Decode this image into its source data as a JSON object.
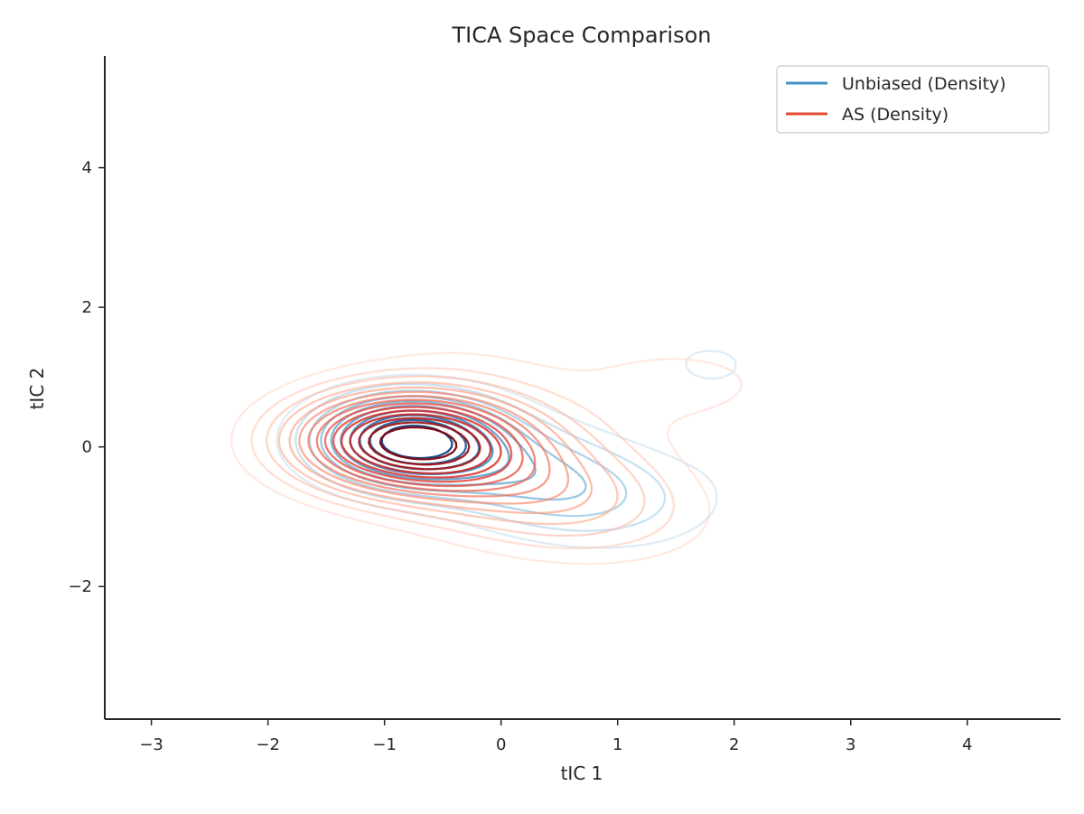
{
  "chart_data": {
    "type": "contour",
    "title": "TICA Space Comparison",
    "xlabel": "tIC 1",
    "ylabel": "tIC 2",
    "xlim": [
      -3.4,
      4.8
    ],
    "ylim": [
      -3.9,
      5.6
    ],
    "xticks": [
      -3,
      -2,
      -1,
      0,
      1,
      2,
      3,
      4
    ],
    "xtick_labels": [
      "−3",
      "−2",
      "−1",
      "0",
      "1",
      "2",
      "3",
      "4"
    ],
    "yticks": [
      -2,
      0,
      2,
      4
    ],
    "ytick_labels": [
      "−2",
      "0",
      "2",
      "4"
    ],
    "grid": false,
    "legend_position": "top-right",
    "series": [
      {
        "name": "Unbiased (Density)",
        "legend_color": "#4292c6",
        "colormap": "Blues",
        "levels": 10,
        "components": [
          {
            "mx": -0.8,
            "my": 0.1,
            "sx": 0.55,
            "sy": 0.45,
            "rho": 0.0,
            "w": 1.0
          },
          {
            "mx": 0.4,
            "my": -0.5,
            "sx": 0.8,
            "sy": 0.6,
            "rho": -0.35,
            "w": 0.45
          },
          {
            "mx": 0.6,
            "my": 2.7,
            "sx": 0.5,
            "sy": 0.7,
            "rho": 0.0,
            "w": 0.12
          },
          {
            "mx": 1.8,
            "my": 1.2,
            "sx": 0.45,
            "sy": 0.4,
            "rho": 0.0,
            "w": 0.14
          },
          {
            "mx": 2.0,
            "my": -0.3,
            "sx": 0.5,
            "sy": 0.7,
            "rho": 0.0,
            "w": 0.06
          }
        ]
      },
      {
        "name": "AS (Density)",
        "legend_color": "#e34a33",
        "colormap": "Reds",
        "levels": 15,
        "components": [
          {
            "mx": -0.8,
            "my": 0.1,
            "sx": 0.7,
            "sy": 0.5,
            "rho": 0.0,
            "w": 1.0
          },
          {
            "mx": 0.3,
            "my": -0.6,
            "sx": 0.9,
            "sy": 0.65,
            "rho": -0.3,
            "w": 0.4
          },
          {
            "mx": 1.6,
            "my": 0.9,
            "sx": 0.8,
            "sy": 0.55,
            "rho": 0.0,
            "w": 0.12
          },
          {
            "mx": -0.2,
            "my": 1.5,
            "sx": 0.8,
            "sy": 0.5,
            "rho": 0.0,
            "w": 0.06
          }
        ]
      }
    ]
  }
}
